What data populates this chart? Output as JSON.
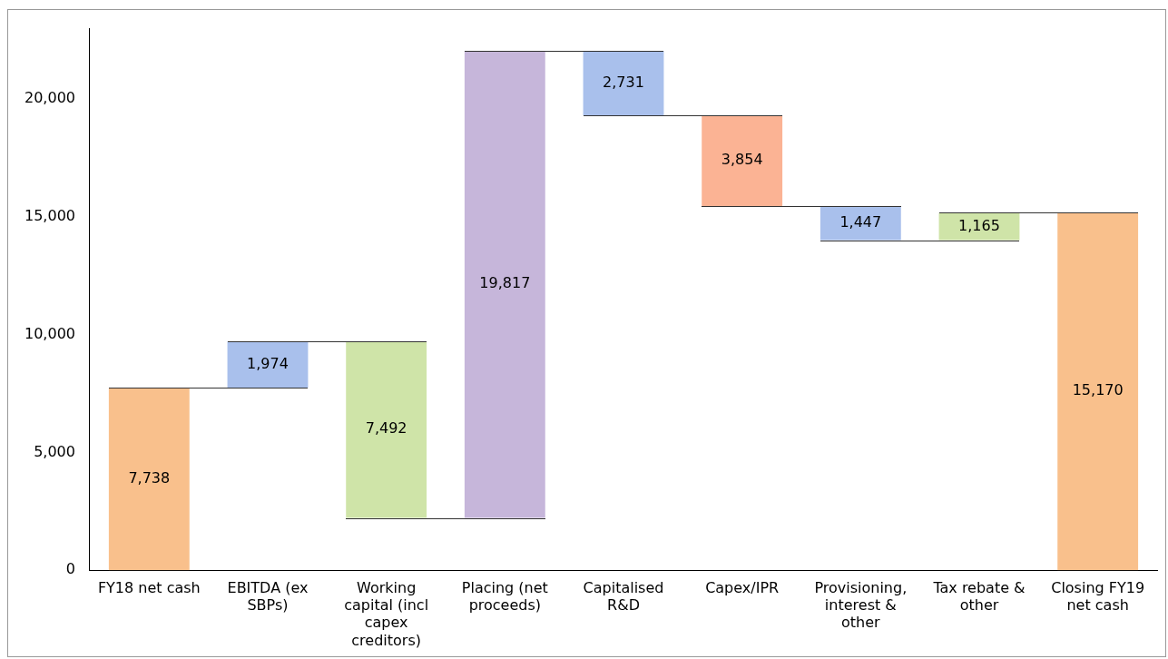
{
  "chart_data": {
    "type": "bar",
    "categories": [
      "FY18 net cash",
      "EBITDA (ex SBPs)",
      "Working capital (incl capex creditors)",
      "Placing (net proceeds)",
      "Capitalised R&D",
      "Capex/IPR",
      "Provisioning, interest & other",
      "Tax rebate & other",
      "Closing FY19 net cash"
    ],
    "values": [
      7738,
      1974,
      -7492,
      19817,
      -2731,
      -3854,
      -1447,
      1165,
      15170
    ],
    "base": [
      0,
      7738,
      9712,
      2220,
      22037,
      19306,
      15452,
      14005,
      0
    ],
    "value_labels": [
      "7,738",
      "1,974",
      "7,492",
      "19,817",
      "2,731",
      "3,854",
      "1,447",
      "1,165",
      "15,170"
    ],
    "colors": [
      "#f9c08c",
      "#a9c0ec",
      "#cfe4a8",
      "#c6b6da",
      "#a9c0ec",
      "#fbb394",
      "#a9c0ec",
      "#cfe4a8",
      "#f9c08c"
    ],
    "ylim": [
      0,
      23000
    ],
    "yticks": [
      0,
      {
        "value": 5000,
        "label": "5,000"
      },
      {
        "value": 10000,
        "label": "10,000"
      },
      {
        "value": 15000,
        "label": "15,000"
      },
      {
        "value": 20000,
        "label": "20,000"
      }
    ],
    "grid": false,
    "legend": false
  }
}
